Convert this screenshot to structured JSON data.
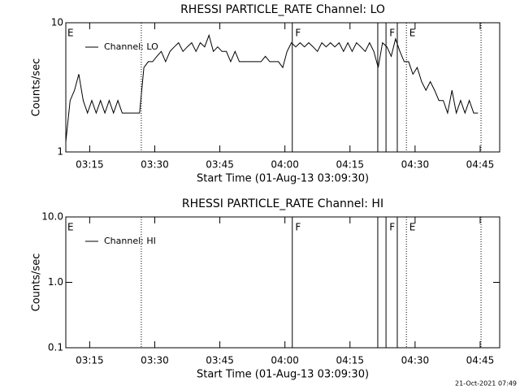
{
  "chart_data": [
    {
      "type": "line",
      "title": "RHESSI PARTICLE_RATE Channel: LO",
      "xlabel": "Start Time (01-Aug-13 03:09:30)",
      "ylabel": "Counts/sec",
      "x": [
        0,
        1,
        2,
        3,
        4,
        5,
        6,
        7,
        8,
        9,
        10,
        11,
        12,
        13,
        14,
        15,
        16,
        17,
        18,
        19,
        20,
        21,
        22,
        23,
        24,
        25,
        26,
        27,
        28,
        29,
        30,
        31,
        32,
        33,
        34,
        35,
        36,
        37,
        38,
        39,
        40,
        41,
        42,
        43,
        44,
        45,
        46,
        47,
        48,
        49,
        50,
        51,
        52,
        53,
        54,
        55,
        56,
        57,
        58,
        59,
        60,
        61,
        62,
        63,
        64,
        65,
        66,
        67,
        68,
        69,
        70,
        71,
        72,
        73,
        74,
        75,
        76,
        77,
        78,
        79,
        80,
        81,
        82,
        83,
        84,
        85,
        86,
        87,
        88,
        89,
        90,
        91,
        92,
        93,
        94,
        95
      ],
      "series": [
        {
          "name": "Channel: LO",
          "color": "#000000",
          "values": [
            1.2,
            2.5,
            3,
            4,
            2.5,
            2,
            2.5,
            2,
            2.5,
            2,
            2.5,
            2,
            2.5,
            2,
            2,
            2,
            2,
            2,
            4.5,
            5,
            5,
            5.5,
            6,
            5,
            6,
            6.5,
            7,
            6,
            6.5,
            7,
            6,
            7,
            6.5,
            8,
            6,
            6.5,
            6,
            6,
            5,
            6,
            5,
            5,
            5,
            5,
            5,
            5,
            5.5,
            5,
            5,
            5,
            4.5,
            6,
            7,
            6.5,
            7,
            6.5,
            7,
            6.5,
            6,
            7,
            6.5,
            7,
            6.5,
            7,
            6,
            7,
            6,
            7,
            6.5,
            6,
            7,
            6,
            4.5,
            7,
            6.5,
            5.5,
            7.5,
            6,
            5,
            5,
            4,
            4.5,
            3.5,
            3,
            3.5,
            3,
            2.5,
            2.5,
            2,
            3,
            2,
            2.5,
            2,
            2.5,
            2,
            2
          ]
        }
      ],
      "xlim": [
        0,
        100
      ],
      "xticks": [
        {
          "value": 5.5,
          "label": "03:15"
        },
        {
          "value": 20.5,
          "label": "03:30"
        },
        {
          "value": 35.5,
          "label": "03:45"
        },
        {
          "value": 50.5,
          "label": "04:00"
        },
        {
          "value": 65.5,
          "label": "04:15"
        },
        {
          "value": 80.5,
          "label": "04:30"
        },
        {
          "value": 95.5,
          "label": "04:45"
        }
      ],
      "ylim": [
        1,
        10
      ],
      "yticks": [
        1,
        10
      ],
      "log_y": true,
      "legend": "top-left",
      "markers": [
        {
          "x": 17.4,
          "style": "dotted"
        },
        {
          "x": 52.2,
          "style": "solid"
        },
        {
          "x": 71.9,
          "style": "solid"
        },
        {
          "x": 73.8,
          "style": "solid"
        },
        {
          "x": 76.4,
          "style": "solid"
        },
        {
          "x": 78.5,
          "style": "dotted"
        },
        {
          "x": 95.7,
          "style": "dotted"
        }
      ],
      "annotations": [
        {
          "x": 0,
          "label": "E"
        },
        {
          "x": 52.5,
          "label": "F"
        },
        {
          "x": 74.2,
          "label": "F"
        },
        {
          "x": 78.8,
          "label": "E"
        }
      ]
    },
    {
      "type": "line",
      "title": "RHESSI PARTICLE_RATE Channel: HI",
      "xlabel": "Start Time (01-Aug-13 03:09:30)",
      "ylabel": "Counts/sec",
      "x": [],
      "series": [
        {
          "name": "Channel: HI",
          "color": "#000000",
          "values": []
        }
      ],
      "xlim": [
        0,
        100
      ],
      "xticks": [
        {
          "value": 5.5,
          "label": "03:15"
        },
        {
          "value": 20.5,
          "label": "03:30"
        },
        {
          "value": 35.5,
          "label": "03:45"
        },
        {
          "value": 50.5,
          "label": "04:00"
        },
        {
          "value": 65.5,
          "label": "04:15"
        },
        {
          "value": 80.5,
          "label": "04:30"
        },
        {
          "value": 95.5,
          "label": "04:45"
        }
      ],
      "ylim": [
        0.1,
        10
      ],
      "yticks": [
        0.1,
        {
          "value": 1,
          "label": "1.0"
        },
        {
          "value": 10,
          "label": "10.0"
        }
      ],
      "log_y": true,
      "legend": "top-left",
      "markers": [
        {
          "x": 17.4,
          "style": "dotted"
        },
        {
          "x": 52.2,
          "style": "solid"
        },
        {
          "x": 71.9,
          "style": "solid"
        },
        {
          "x": 73.8,
          "style": "solid"
        },
        {
          "x": 76.4,
          "style": "solid"
        },
        {
          "x": 78.5,
          "style": "dotted"
        },
        {
          "x": 95.7,
          "style": "dotted"
        }
      ],
      "annotations": [
        {
          "x": 0,
          "label": "E"
        },
        {
          "x": 52.5,
          "label": "F"
        },
        {
          "x": 74.2,
          "label": "F"
        },
        {
          "x": 78.8,
          "label": "E"
        }
      ]
    }
  ],
  "footer": "21-Oct-2021 07:49"
}
